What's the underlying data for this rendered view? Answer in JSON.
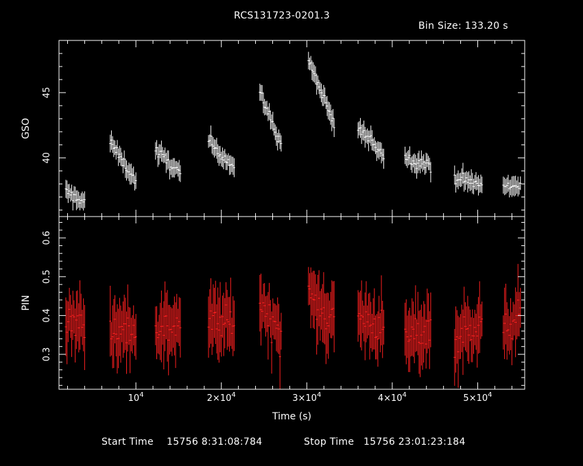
{
  "title": "RCS131723-0201.3",
  "bin_size": "Bin Size: 133.20 s",
  "start_label": "Start Time",
  "start_value": "15756  8:31:08:784",
  "stop_label": "Stop Time",
  "stop_value": "15756 23:01:23:184",
  "chart_data": [
    {
      "type": "scatter",
      "ylabel": "GSO",
      "xlim": [
        1000,
        55500
      ],
      "ylim": [
        35.5,
        49
      ],
      "yticks": [
        40,
        45
      ],
      "color": "#ffffff",
      "show_x_ticklabels": false,
      "segments": [
        {
          "x0": 1800,
          "x1": 4000,
          "y0": 37.4,
          "y1": 36.6
        },
        {
          "x0": 7000,
          "x1": 10000,
          "y0": 41.2,
          "y1": 38.2
        },
        {
          "x0": 12300,
          "x1": 15200,
          "y0": 40.6,
          "y1": 38.8
        },
        {
          "x0": 18500,
          "x1": 21500,
          "y0": 41.3,
          "y1": 39.3
        },
        {
          "x0": 24500,
          "x1": 27000,
          "y0": 45.0,
          "y1": 41.0
        },
        {
          "x0": 30200,
          "x1": 33200,
          "y0": 47.5,
          "y1": 42.5
        },
        {
          "x0": 36000,
          "x1": 39000,
          "y0": 42.3,
          "y1": 40.3
        },
        {
          "x0": 41500,
          "x1": 44500,
          "y0": 40.0,
          "y1": 39.4
        },
        {
          "x0": 47300,
          "x1": 50500,
          "y0": 38.5,
          "y1": 37.9
        },
        {
          "x0": 53000,
          "x1": 55000,
          "y0": 37.8,
          "y1": 37.9
        }
      ]
    },
    {
      "type": "scatter",
      "ylabel": "PIN",
      "xlabel": "Time (s)",
      "xlim": [
        1000,
        55500
      ],
      "ylim": [
        0.21,
        0.655
      ],
      "yticks": [
        0.3,
        0.4,
        0.5,
        0.6
      ],
      "xticks": [
        10000,
        20000,
        30000,
        40000,
        50000
      ],
      "xtick_labels": [
        {
          "b": "10",
          "e": "4"
        },
        {
          "b": "2×10",
          "e": "4"
        },
        {
          "b": "3×10",
          "e": "4"
        },
        {
          "b": "4×10",
          "e": "4"
        },
        {
          "b": "5×10",
          "e": "4"
        }
      ],
      "color": "#ff2020",
      "segments": [
        {
          "x0": 1800,
          "x1": 4000,
          "y0": 0.38,
          "y1": 0.38
        },
        {
          "x0": 7000,
          "x1": 10000,
          "y0": 0.37,
          "y1": 0.36
        },
        {
          "x0": 12300,
          "x1": 15200,
          "y0": 0.36,
          "y1": 0.38
        },
        {
          "x0": 18500,
          "x1": 21500,
          "y0": 0.38,
          "y1": 0.38
        },
        {
          "x0": 24500,
          "x1": 27000,
          "y0": 0.43,
          "y1": 0.36
        },
        {
          "x0": 30200,
          "x1": 33200,
          "y0": 0.45,
          "y1": 0.39
        },
        {
          "x0": 36000,
          "x1": 39000,
          "y0": 0.4,
          "y1": 0.36
        },
        {
          "x0": 41500,
          "x1": 44500,
          "y0": 0.34,
          "y1": 0.37
        },
        {
          "x0": 47300,
          "x1": 50500,
          "y0": 0.34,
          "y1": 0.38
        },
        {
          "x0": 53000,
          "x1": 55000,
          "y0": 0.35,
          "y1": 0.4
        }
      ]
    }
  ]
}
